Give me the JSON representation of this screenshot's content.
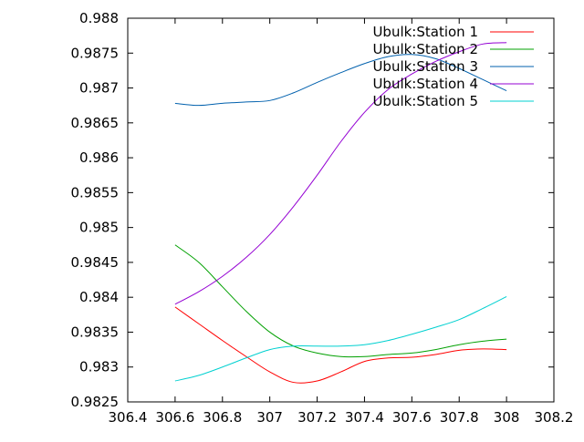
{
  "chart_data": {
    "type": "line",
    "title": "",
    "xlabel": "",
    "ylabel": "",
    "xlim": [
      306.4,
      308.2
    ],
    "ylim": [
      0.9825,
      0.988
    ],
    "x_ticks": [
      "306.4",
      "306.6",
      "306.8",
      "307",
      "307.2",
      "307.4",
      "307.6",
      "307.8",
      "308",
      "308.2"
    ],
    "y_ticks": [
      "0.9825",
      "0.983",
      "0.9835",
      "0.984",
      "0.9845",
      "0.985",
      "0.9855",
      "0.986",
      "0.9865",
      "0.987",
      "0.9875",
      "0.988"
    ],
    "grid": false,
    "legend_position": "top-right",
    "series": [
      {
        "name": "Ubulk:Station 1",
        "color": "#ff0000",
        "x": [
          306.6,
          306.7,
          306.8,
          306.9,
          307.0,
          307.1,
          307.2,
          307.3,
          307.4,
          307.5,
          307.6,
          307.7,
          307.8,
          307.9,
          308.0
        ],
        "y": [
          0.98386,
          0.98362,
          0.98338,
          0.98315,
          0.98293,
          0.98278,
          0.9828,
          0.98293,
          0.98308,
          0.98313,
          0.98314,
          0.98318,
          0.98324,
          0.98326,
          0.98325
        ]
      },
      {
        "name": "Ubulk:Station 2",
        "color": "#00a000",
        "x": [
          306.6,
          306.7,
          306.8,
          306.9,
          307.0,
          307.1,
          307.2,
          307.3,
          307.4,
          307.5,
          307.6,
          307.7,
          307.8,
          307.9,
          308.0
        ],
        "y": [
          0.98475,
          0.9845,
          0.98415,
          0.9838,
          0.9835,
          0.9833,
          0.9832,
          0.98315,
          0.98315,
          0.98318,
          0.9832,
          0.98325,
          0.98332,
          0.98337,
          0.9834
        ]
      },
      {
        "name": "Ubulk:Station 3",
        "color": "#0060ad",
        "x": [
          306.6,
          306.7,
          306.8,
          306.9,
          307.0,
          307.1,
          307.2,
          307.3,
          307.4,
          307.5,
          307.6,
          307.7,
          307.8,
          307.9,
          308.0
        ],
        "y": [
          0.98678,
          0.98675,
          0.98678,
          0.9868,
          0.98682,
          0.98693,
          0.98708,
          0.98722,
          0.98735,
          0.98745,
          0.98748,
          0.98742,
          0.98728,
          0.98712,
          0.98696
        ]
      },
      {
        "name": "Ubulk:Station 4",
        "color": "#9400d3",
        "x": [
          306.6,
          306.7,
          306.8,
          306.9,
          307.0,
          307.1,
          307.2,
          307.3,
          307.4,
          307.5,
          307.6,
          307.7,
          307.8,
          307.9,
          308.0
        ],
        "y": [
          0.9839,
          0.98408,
          0.9843,
          0.98457,
          0.9849,
          0.9853,
          0.98575,
          0.98623,
          0.98665,
          0.98698,
          0.9872,
          0.98738,
          0.98752,
          0.98763,
          0.98765
        ]
      },
      {
        "name": "Ubulk:Station 5",
        "color": "#00d0d0",
        "x": [
          306.6,
          306.7,
          306.8,
          306.9,
          307.0,
          307.1,
          307.2,
          307.3,
          307.4,
          307.5,
          307.6,
          307.7,
          307.8,
          307.9,
          308.0
        ],
        "y": [
          0.9828,
          0.98288,
          0.983,
          0.98313,
          0.98325,
          0.9833,
          0.9833,
          0.9833,
          0.98332,
          0.98338,
          0.98347,
          0.98357,
          0.98368,
          0.98384,
          0.98401
        ]
      }
    ]
  }
}
